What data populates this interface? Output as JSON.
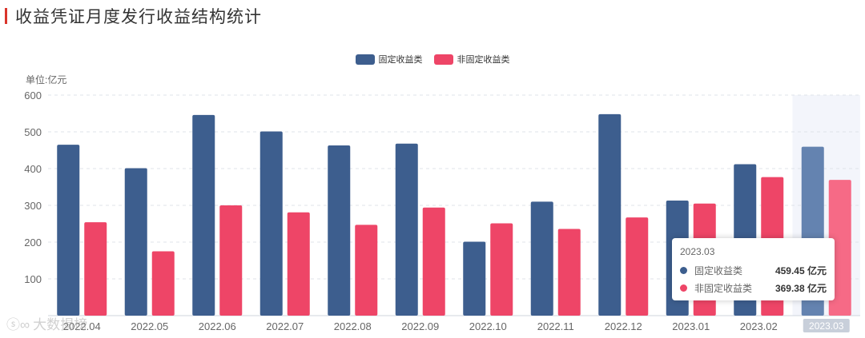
{
  "title": "收益凭证月度发行收益结构统计",
  "unit_label": "单位:亿元",
  "watermark": "大数揭榜",
  "tooltip": {
    "title": "2023.03",
    "rows": [
      {
        "name": "固定收益类",
        "value": "459.45 亿元"
      },
      {
        "name": "非固定收益类",
        "value": "369.38 亿元"
      }
    ]
  },
  "colors": {
    "fixed": "#3d5e8e",
    "nonfixed": "#ee4567",
    "fixed_highlight": "#6483b0",
    "nonfixed_highlight": "#f66a86",
    "highlight_band": "#f3f5fb"
  },
  "chart_data": {
    "type": "bar",
    "categories": [
      "2022.04",
      "2022.05",
      "2022.06",
      "2022.07",
      "2022.08",
      "2022.09",
      "2022.10",
      "2022.11",
      "2022.12",
      "2023.01",
      "2023.02",
      "2023.03"
    ],
    "series": [
      {
        "name": "固定收益类",
        "values": [
          465,
          401,
          546,
          501,
          463,
          468,
          201,
          310,
          548,
          313,
          412,
          459.45
        ]
      },
      {
        "name": "非固定收益类",
        "values": [
          254,
          175,
          300,
          281,
          247,
          294,
          251,
          236,
          267,
          305,
          377,
          369.38
        ]
      }
    ],
    "ylabel": "单位:亿元",
    "ylim": [
      0,
      600
    ],
    "yticks": [
      0,
      100,
      200,
      300,
      400,
      500,
      600
    ],
    "grid": true,
    "legend": "top-center",
    "highlighted_category": "2023.03"
  }
}
